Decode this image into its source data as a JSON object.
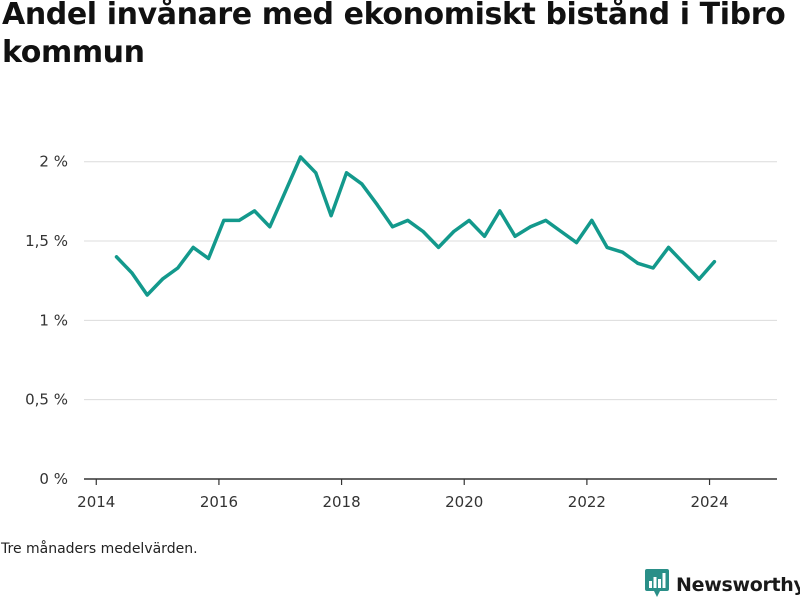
{
  "title": "Andel invånare med ekonomiskt bistånd i Tibro kommun",
  "note": "Tre månaders medelvärden.",
  "brand": {
    "name": "Newsworthy",
    "icon": "bar-chart-logo-icon",
    "color": "#2a8f88"
  },
  "chart_data": {
    "type": "line",
    "title": "Andel invånare med ekonomiskt bistånd i Tibro kommun",
    "xlabel": "",
    "ylabel": "",
    "xlim": [
      2013.8,
      2025.1
    ],
    "ylim": [
      0,
      2.2
    ],
    "x_ticks": [
      2014,
      2016,
      2018,
      2020,
      2022,
      2024
    ],
    "x_tick_labels": [
      "2014",
      "2016",
      "2018",
      "2020",
      "2022",
      "2024"
    ],
    "y_ticks": [
      0,
      0.5,
      1,
      1.5,
      2
    ],
    "y_tick_labels": [
      "0 %",
      "0,5 %",
      "1 %",
      "1,5 %",
      "2 %"
    ],
    "grid": true,
    "line_color": "#13998c",
    "series": [
      {
        "x": [
          2014.33,
          2014.58,
          2014.83,
          2015.08,
          2015.33,
          2015.58,
          2015.83,
          2016.08,
          2016.33,
          2016.58,
          2016.83,
          2017.08,
          2017.33,
          2017.58,
          2017.83,
          2018.08,
          2018.33,
          2018.58,
          2018.83,
          2019.08,
          2019.33,
          2019.58,
          2019.83,
          2020.08,
          2020.33,
          2020.58,
          2020.83,
          2021.08,
          2021.33,
          2021.58,
          2021.83,
          2022.08,
          2022.33,
          2022.58,
          2022.83,
          2023.08,
          2023.33,
          2023.58,
          2023.83,
          2024.08
        ],
        "values": [
          1.4,
          1.3,
          1.16,
          1.26,
          1.33,
          1.46,
          1.39,
          1.63,
          1.63,
          1.69,
          1.59,
          1.81,
          2.03,
          1.93,
          1.66,
          1.93,
          1.86,
          1.73,
          1.59,
          1.63,
          1.56,
          1.46,
          1.56,
          1.63,
          1.53,
          1.69,
          1.53,
          1.59,
          1.63,
          1.56,
          1.49,
          1.63,
          1.46,
          1.43,
          1.36,
          1.33,
          1.46,
          1.36,
          1.26,
          1.37
        ]
      }
    ]
  }
}
